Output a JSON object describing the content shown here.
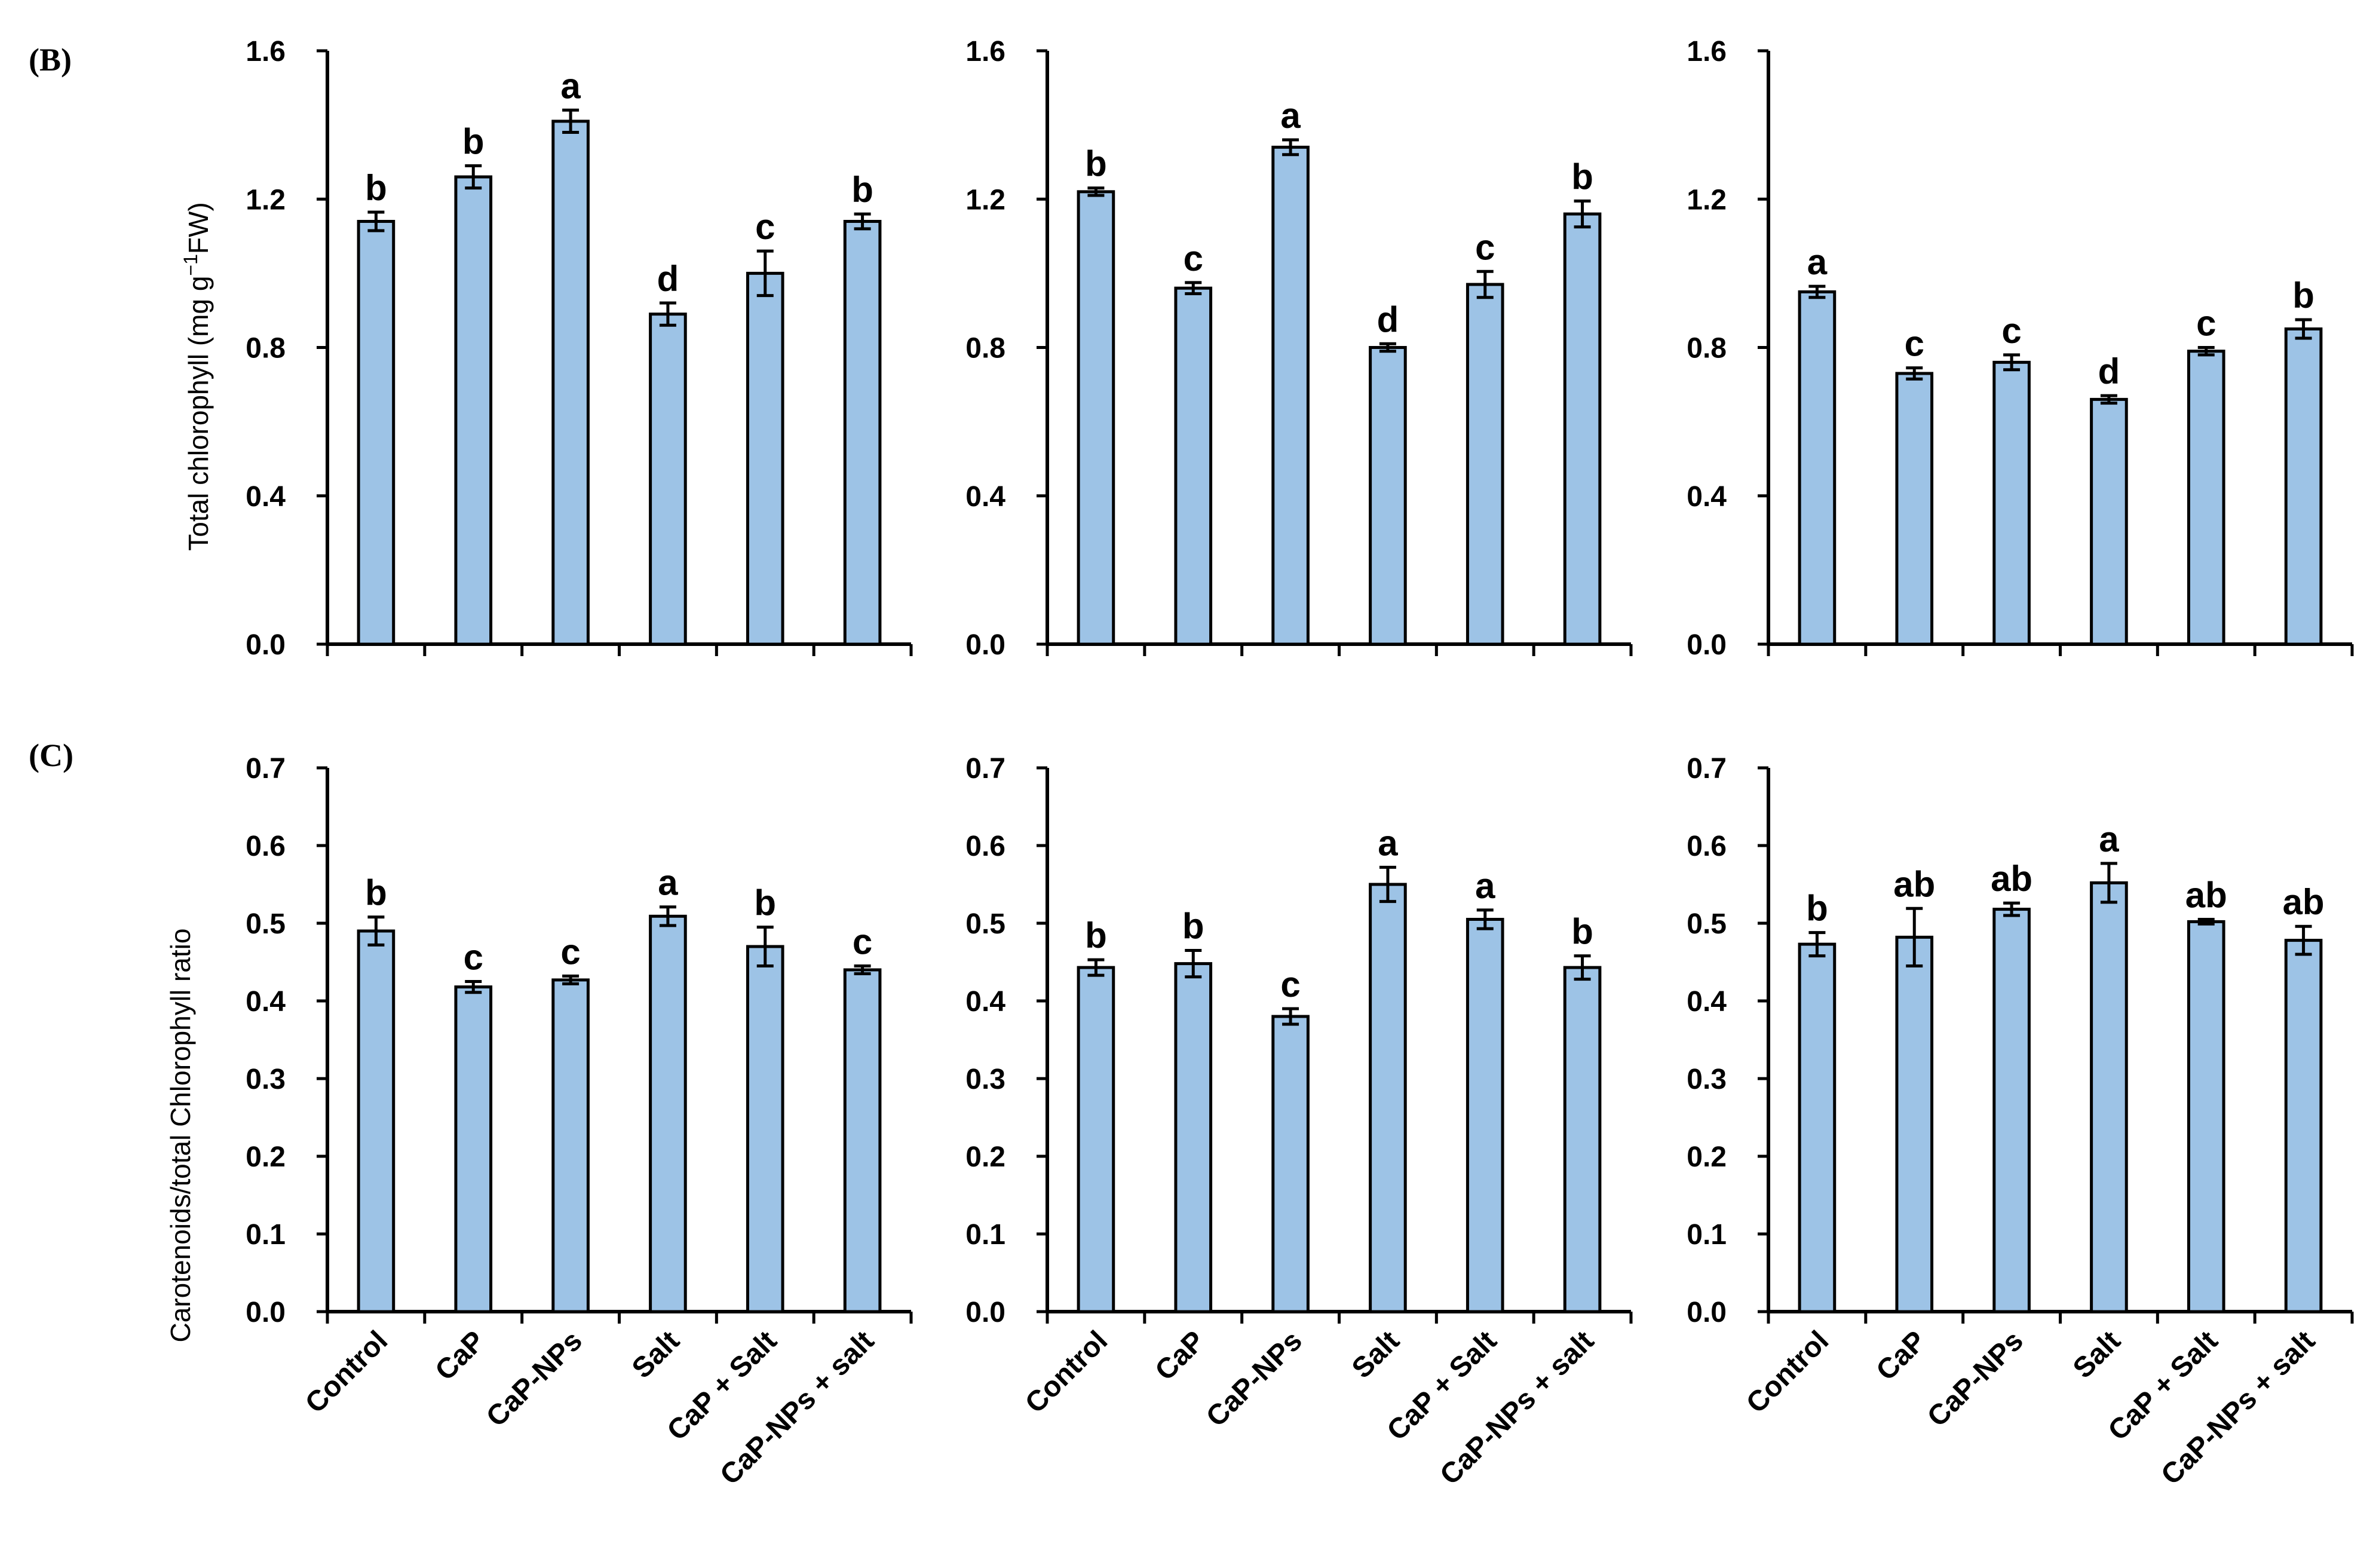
{
  "figure": {
    "bar_color": "#9DC3E6",
    "bar_edge": "#000000",
    "panels": [
      {
        "label": "(B)",
        "ylabel_main": "Total chlorophyll (mg g",
        "ylabel_sup": "−1",
        "ylabel_end": "FW)"
      },
      {
        "label": "(C)",
        "ylabel_main": "Carotenoids/total Chlorophyll ratio",
        "ylabel_sup": "",
        "ylabel_end": ""
      }
    ]
  },
  "chart_data": [
    {
      "type": "bar",
      "row": 0,
      "col": 0,
      "categories": [
        "Control",
        "CaP",
        "CaP-NPs",
        "Salt",
        "CaP + Salt",
        "CaP-NPs + salt"
      ],
      "values": [
        1.14,
        1.26,
        1.41,
        0.89,
        1.0,
        1.14
      ],
      "errors": [
        0.025,
        0.03,
        0.03,
        0.03,
        0.06,
        0.02
      ],
      "letters": [
        "b",
        "b",
        "a",
        "d",
        "c",
        "b"
      ],
      "ylim": [
        0,
        1.6
      ],
      "yticks": [
        "0.0",
        "0.4",
        "0.8",
        "1.2",
        "1.6"
      ],
      "ytick_values": [
        0,
        0.4,
        0.8,
        1.2,
        1.6
      ],
      "ylabel": "Total chlorophyll (mg g−1FW)"
    },
    {
      "type": "bar",
      "row": 0,
      "col": 1,
      "categories": [
        "Control",
        "CaP",
        "CaP-NPs",
        "Salt",
        "CaP + Salt",
        "CaP-NPs + salt"
      ],
      "values": [
        1.22,
        0.96,
        1.34,
        0.8,
        0.97,
        1.16
      ],
      "errors": [
        0.01,
        0.015,
        0.02,
        0.01,
        0.035,
        0.035
      ],
      "letters": [
        "b",
        "c",
        "a",
        "d",
        "c",
        "b"
      ],
      "ylim": [
        0,
        1.6
      ],
      "yticks": [
        "0.0",
        "0.4",
        "0.8",
        "1.2",
        "1.6"
      ],
      "ytick_values": [
        0,
        0.4,
        0.8,
        1.2,
        1.6
      ],
      "ylabel": ""
    },
    {
      "type": "bar",
      "row": 0,
      "col": 2,
      "categories": [
        "Control",
        "CaP",
        "CaP-NPs",
        "Salt",
        "CaP + Salt",
        "CaP-NPs + salt"
      ],
      "values": [
        0.95,
        0.73,
        0.76,
        0.66,
        0.79,
        0.85
      ],
      "errors": [
        0.015,
        0.015,
        0.02,
        0.01,
        0.01,
        0.025
      ],
      "letters": [
        "a",
        "c",
        "c",
        "d",
        "c",
        "b"
      ],
      "ylim": [
        0,
        1.6
      ],
      "yticks": [
        "0.0",
        "0.4",
        "0.8",
        "1.2",
        "1.6"
      ],
      "ytick_values": [
        0,
        0.4,
        0.8,
        1.2,
        1.6
      ],
      "ylabel": ""
    },
    {
      "type": "bar",
      "row": 1,
      "col": 0,
      "categories": [
        "Control",
        "CaP",
        "CaP-NPs",
        "Salt",
        "CaP + Salt",
        "CaP-NPs + salt"
      ],
      "values": [
        0.49,
        0.418,
        0.427,
        0.509,
        0.47,
        0.44
      ],
      "errors": [
        0.018,
        0.007,
        0.005,
        0.012,
        0.025,
        0.005
      ],
      "letters": [
        "b",
        "c",
        "c",
        "a",
        "b",
        "c"
      ],
      "ylim": [
        0,
        0.7
      ],
      "yticks": [
        "0.0",
        "0.1",
        "0.2",
        "0.3",
        "0.4",
        "0.5",
        "0.6",
        "0.7"
      ],
      "ytick_values": [
        0,
        0.1,
        0.2,
        0.3,
        0.4,
        0.5,
        0.6,
        0.7
      ],
      "ylabel": "Carotenoids/total Chlorophyll ratio"
    },
    {
      "type": "bar",
      "row": 1,
      "col": 1,
      "categories": [
        "Control",
        "CaP",
        "CaP-NPs",
        "Salt",
        "CaP + Salt",
        "CaP-NPs + salt"
      ],
      "values": [
        0.443,
        0.448,
        0.38,
        0.55,
        0.505,
        0.443
      ],
      "errors": [
        0.01,
        0.017,
        0.01,
        0.022,
        0.012,
        0.015
      ],
      "letters": [
        "b",
        "b",
        "c",
        "a",
        "a",
        "b"
      ],
      "ylim": [
        0,
        0.7
      ],
      "yticks": [
        "0.0",
        "0.1",
        "0.2",
        "0.3",
        "0.4",
        "0.5",
        "0.6",
        "0.7"
      ],
      "ytick_values": [
        0,
        0.1,
        0.2,
        0.3,
        0.4,
        0.5,
        0.6,
        0.7
      ],
      "ylabel": ""
    },
    {
      "type": "bar",
      "row": 1,
      "col": 2,
      "categories": [
        "Control",
        "CaP",
        "CaP-NPs",
        "Salt",
        "CaP + Salt",
        "CaP-NPs + salt"
      ],
      "values": [
        0.473,
        0.482,
        0.518,
        0.552,
        0.502,
        0.478
      ],
      "errors": [
        0.015,
        0.037,
        0.008,
        0.025,
        0.003,
        0.018
      ],
      "letters": [
        "b",
        "ab",
        "ab",
        "a",
        "ab",
        "ab"
      ],
      "ylim": [
        0,
        0.7
      ],
      "yticks": [
        "0.0",
        "0.1",
        "0.2",
        "0.3",
        "0.4",
        "0.5",
        "0.6",
        "0.7"
      ],
      "ytick_values": [
        0,
        0.1,
        0.2,
        0.3,
        0.4,
        0.5,
        0.6,
        0.7
      ],
      "ylabel": ""
    }
  ]
}
